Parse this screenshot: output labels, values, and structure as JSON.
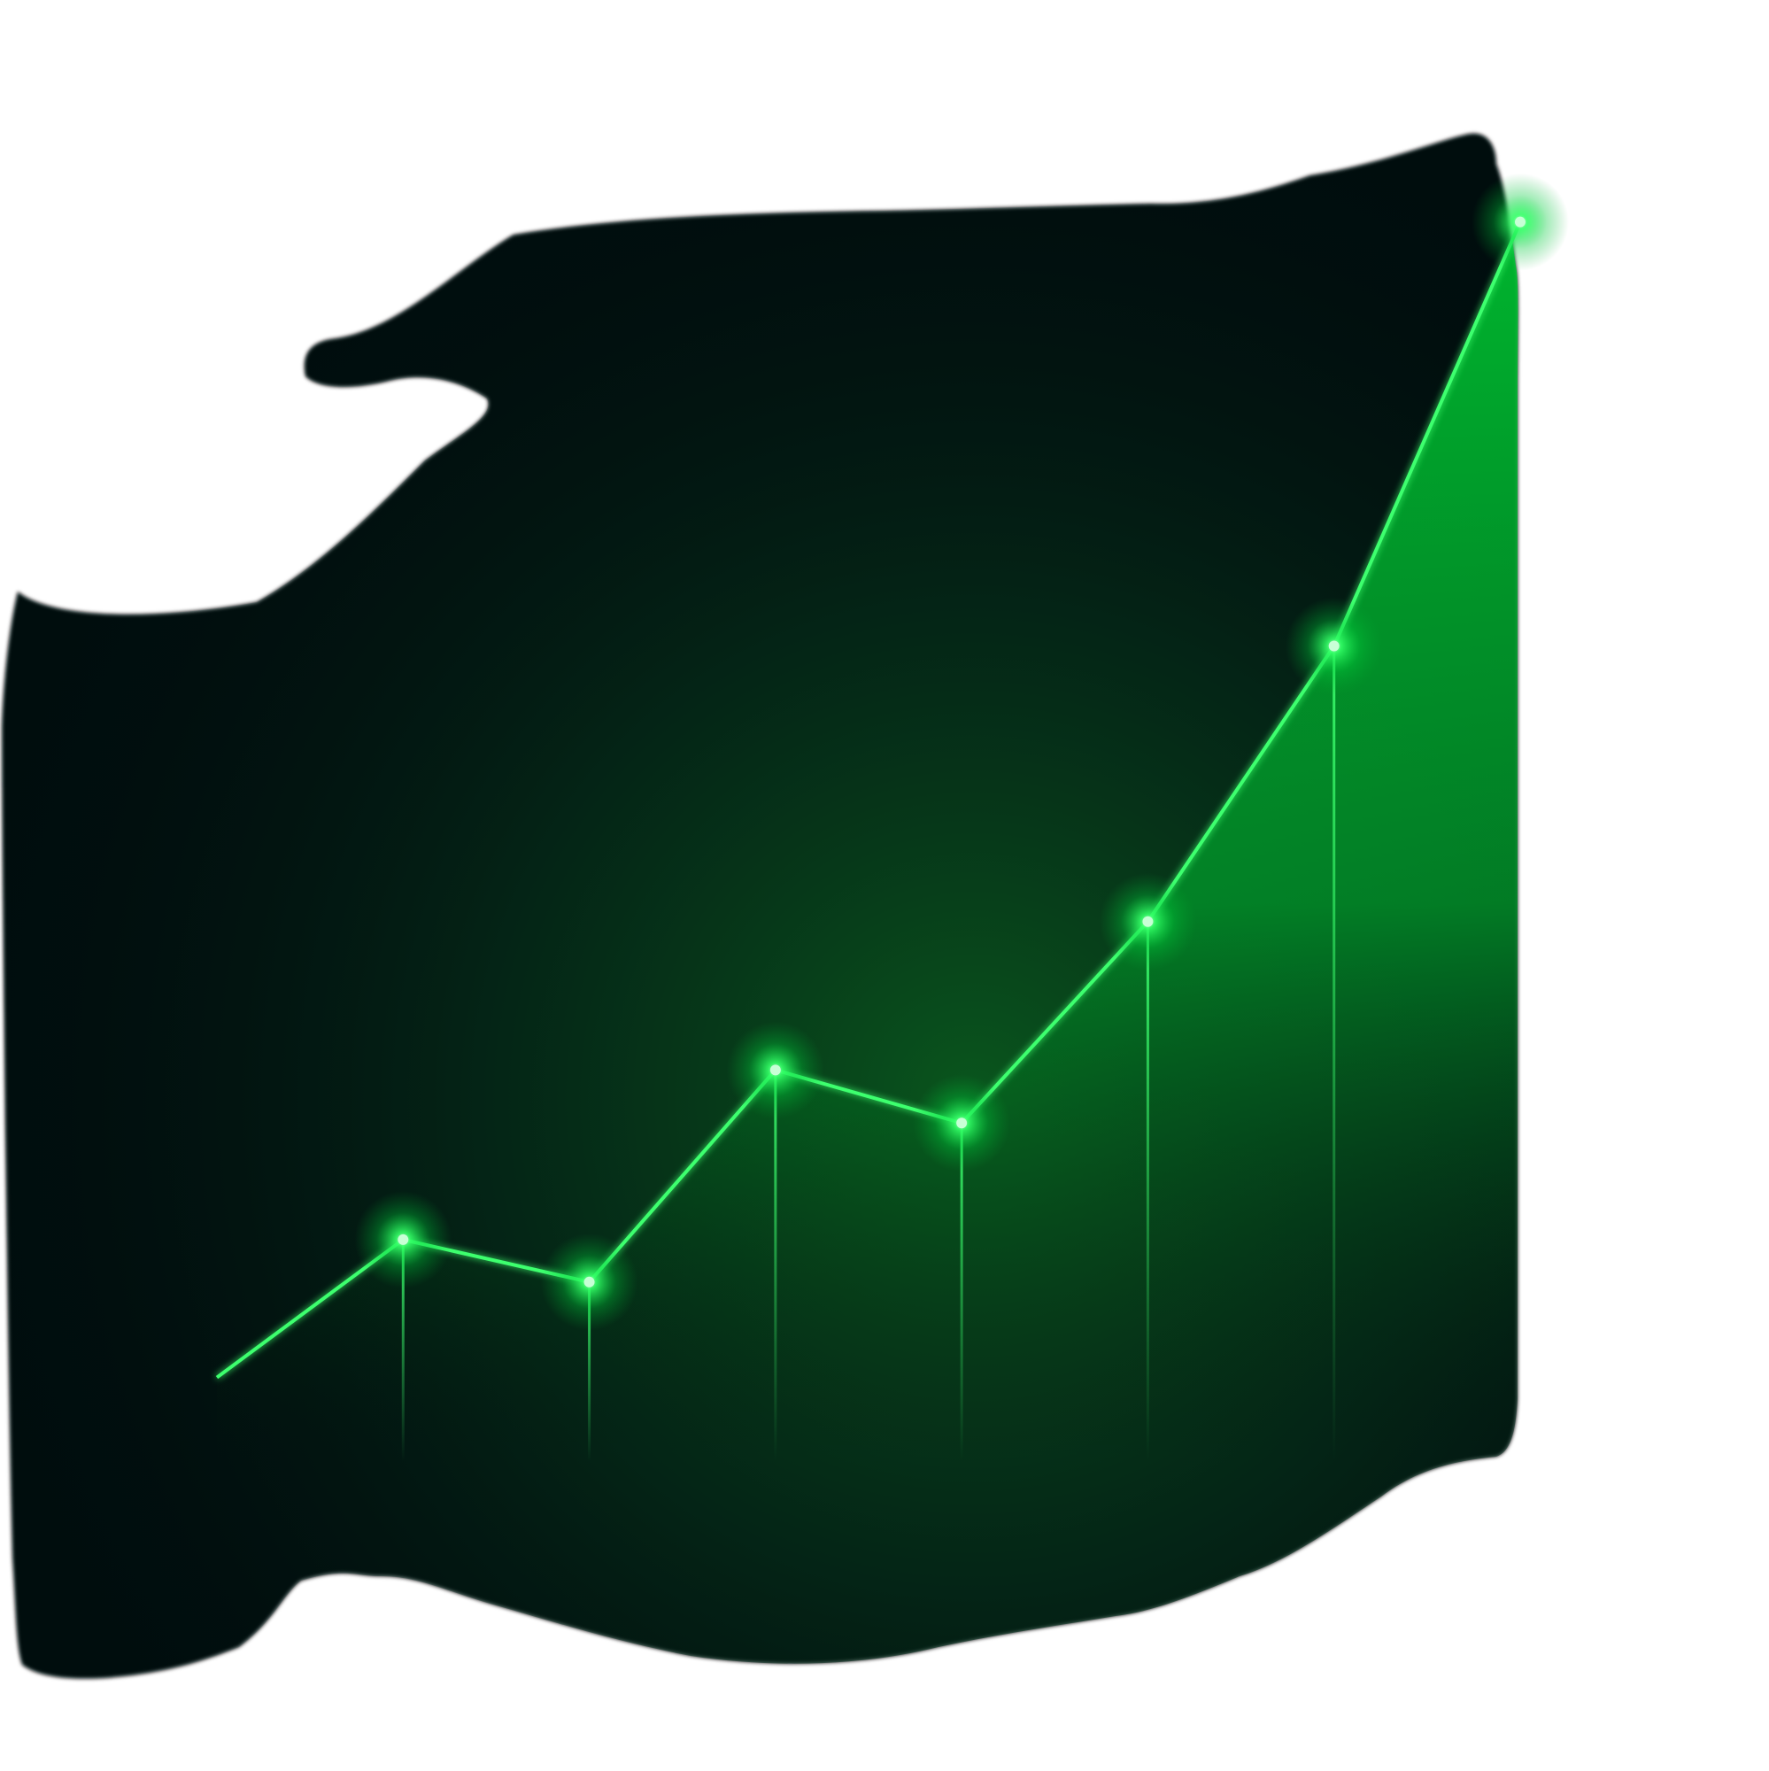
{
  "colors": {
    "background": "#ffffff",
    "panel": "#030b10",
    "panel_edge": "#05100d",
    "glow": "#00ff44",
    "line": "#3cff6e",
    "area_top": "#00c832",
    "area_bottom": "#04140c"
  },
  "chart_data": {
    "type": "area",
    "title": "",
    "xlabel": "",
    "ylabel": "",
    "axes_visible": false,
    "grid": false,
    "legend": "none",
    "x": [
      0,
      1,
      2,
      3,
      4,
      5,
      6,
      7
    ],
    "series": [
      {
        "values": [
          0,
          13,
          9,
          29,
          24,
          43,
          69,
          109
        ],
        "markers": [
          false,
          true,
          true,
          true,
          true,
          true,
          true,
          true
        ],
        "drop_lines": true
      }
    ],
    "ylim": [
      -19,
      120
    ]
  }
}
